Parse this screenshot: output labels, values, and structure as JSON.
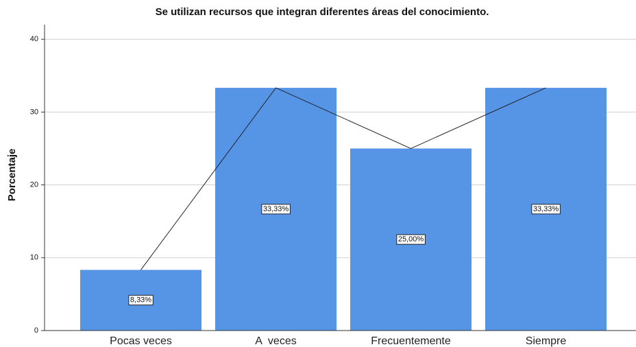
{
  "chart_data": {
    "type": "bar",
    "title": "Se utilizan recursos que integran diferentes áreas del conocimiento.",
    "ylabel": "Porcentaje",
    "categories": [
      "Pocas veces",
      "A  veces",
      "Frecuentemente",
      "Siempre"
    ],
    "values": [
      8.33,
      33.33,
      25.0,
      33.33
    ],
    "value_labels": [
      "8,33%",
      "33,33%",
      "25,00%",
      "33,33%"
    ],
    "color": "#5694e6",
    "line_color": "#222222",
    "ylim": [
      0,
      42
    ],
    "yticks": [
      0,
      10,
      20,
      30,
      40
    ],
    "grid": true
  }
}
